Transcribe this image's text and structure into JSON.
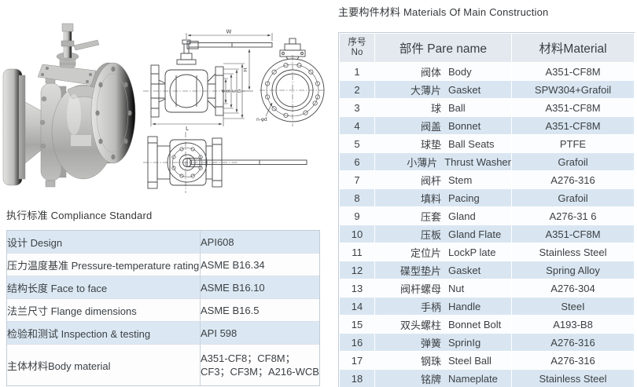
{
  "materials_section": {
    "title": "主要构件材料 Materials Of Main Construction",
    "header": {
      "no_line1": "序号",
      "no_line2": "No",
      "part": "部件 Pare name",
      "material": "材料Material"
    },
    "rows": [
      {
        "no": "1",
        "part_zh": "阀体",
        "part_en": "Body",
        "material": "A351-CF8M"
      },
      {
        "no": "2",
        "part_zh": "大薄片",
        "part_en": "Gasket",
        "material": "SPW304+Grafoil"
      },
      {
        "no": "3",
        "part_zh": "球",
        "part_en": "Ball",
        "material": "A351-CF8M"
      },
      {
        "no": "4",
        "part_zh": "阀盖",
        "part_en": "Bonnet",
        "material": "A351-CF8M"
      },
      {
        "no": "5",
        "part_zh": "球垫",
        "part_en": "Ball Seats",
        "material": "PTFE"
      },
      {
        "no": "6",
        "part_zh": "小薄片",
        "part_en": "Thrust Washer",
        "material": "Grafoil"
      },
      {
        "no": "7",
        "part_zh": "阀杆",
        "part_en": "Stem",
        "material": "A276-316"
      },
      {
        "no": "8",
        "part_zh": "填料",
        "part_en": "Pacing",
        "material": "Grafoil"
      },
      {
        "no": "9",
        "part_zh": "压套",
        "part_en": "Gland",
        "material": "A276-31 6"
      },
      {
        "no": "10",
        "part_zh": "压板",
        "part_en": "Gland Flate",
        "material": "A351-CF8M"
      },
      {
        "no": "11",
        "part_zh": "定位片",
        "part_en": "LockP late",
        "material": "Stainless Steel"
      },
      {
        "no": "12",
        "part_zh": "碟型垫片",
        "part_en": "Gasket",
        "material": "Spring Alloy"
      },
      {
        "no": "13",
        "part_zh": "阀杆螺母",
        "part_en": "Nut",
        "material": "A276-304"
      },
      {
        "no": "14",
        "part_zh": "手柄",
        "part_en": "Handle",
        "material": "SteeI"
      },
      {
        "no": "15",
        "part_zh": "双头螺柱",
        "part_en": "Bonnet Bolt",
        "material": "A193-B8"
      },
      {
        "no": "16",
        "part_zh": "弹簧",
        "part_en": "SprinIg",
        "material": "A276-316"
      },
      {
        "no": "17",
        "part_zh": "钢珠",
        "part_en": "Steel Ball",
        "material": "A276-316"
      },
      {
        "no": "18",
        "part_zh": "铭牌",
        "part_en": "Nameplate",
        "material": "Stainless Steel"
      }
    ]
  },
  "compliance_section": {
    "title": "执行标准 Compliance Standard",
    "rows": [
      {
        "label": "设计 Design",
        "value": "API608"
      },
      {
        "label": "压力温度基准 Pressure-temperature rating",
        "value": "ASME B16.34"
      },
      {
        "label": "结构长度 Face to face",
        "value": "ASME B16.10"
      },
      {
        "label": "法兰尺寸 Flange dimensions",
        "value": "ASME B16.5"
      },
      {
        "label": "检验和测试 Inspection & testing",
        "value": "API 598"
      },
      {
        "label": "主体材料Body material",
        "value": "A351-CF8；CF8M；CF3；CF3M；A216-WCB"
      }
    ]
  },
  "drawings": {
    "labels": {
      "w": "W",
      "h": "H",
      "l": "L",
      "d": "d",
      "b": "B",
      "c": "C",
      "big_d": "D",
      "bolt_note": "n-φd"
    }
  },
  "colors": {
    "header_bg": "#e4e9ef",
    "alt_row_bg": "#d9e6f2",
    "table_border": "#c3ccd6",
    "text": "#3c4043"
  }
}
